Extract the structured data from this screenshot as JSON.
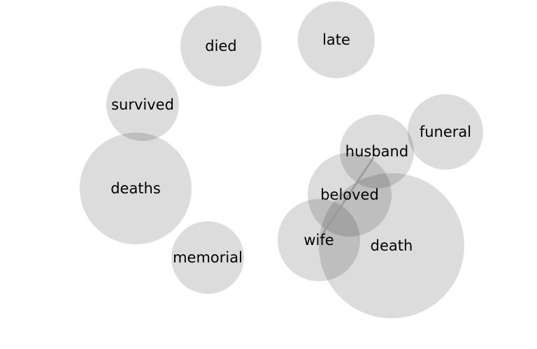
{
  "diagram": {
    "bubble_color": "#dcdcdc",
    "link_color": "#999999",
    "words": [
      {
        "id": "died",
        "label": "died"
      },
      {
        "id": "late",
        "label": "late"
      },
      {
        "id": "survived",
        "label": "survived"
      },
      {
        "id": "funeral",
        "label": "funeral"
      },
      {
        "id": "husband",
        "label": "husband"
      },
      {
        "id": "deaths",
        "label": "deaths"
      },
      {
        "id": "beloved",
        "label": "beloved"
      },
      {
        "id": "death",
        "label": "death"
      },
      {
        "id": "wife",
        "label": "wife"
      },
      {
        "id": "memorial",
        "label": "memorial"
      }
    ],
    "links": [
      {
        "from": "husband",
        "to": "wife"
      }
    ]
  }
}
